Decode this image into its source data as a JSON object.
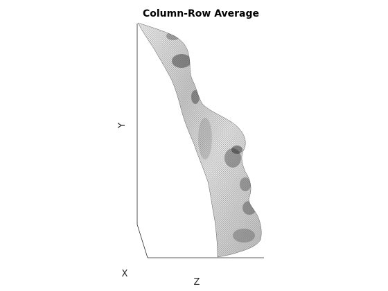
{
  "chart_data": {
    "type": "surface",
    "title": "Column-Row Average",
    "xlabel": "X",
    "ylabel": "Y",
    "zlabel": "Z",
    "colormap": "gray",
    "grid": false,
    "view": "3d-perspective",
    "tick_labels_visible": false
  }
}
